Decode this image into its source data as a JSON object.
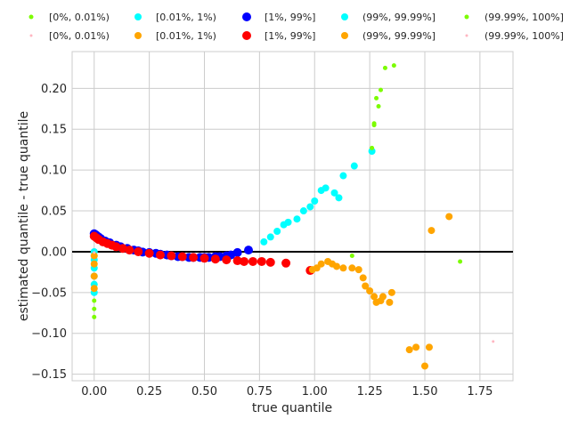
{
  "chart_data": {
    "type": "scatter",
    "xlabel": "true quantile",
    "ylabel": "estimated quantile - true quantile",
    "xlim": [
      -0.1,
      1.9
    ],
    "ylim": [
      -0.158,
      0.245
    ],
    "xticks": [
      0.0,
      0.25,
      0.5,
      0.75,
      1.0,
      1.25,
      1.5,
      1.75
    ],
    "xtick_labels": [
      "0.00",
      "0.25",
      "0.50",
      "0.75",
      "1.00",
      "1.25",
      "1.50",
      "1.75"
    ],
    "yticks": [
      -0.15,
      -0.1,
      -0.05,
      0.0,
      0.05,
      0.1,
      0.15,
      0.2
    ],
    "ytick_labels": [
      "−0.15",
      "−0.10",
      "−0.05",
      "0.00",
      "0.05",
      "0.10",
      "0.15",
      "0.20"
    ],
    "grid": true,
    "zero_line": true,
    "legend_placement": "top, above plot, 2 rows x 5 columns",
    "legend": [
      {
        "label": "[0%, 0.01%)",
        "color": "#7cfc00",
        "size": "small"
      },
      {
        "label": "[0.01%, 1%)",
        "color": "#00ffff",
        "size": "medium"
      },
      {
        "label": "[1%, 99%]",
        "color": "#0000ff",
        "size": "large"
      },
      {
        "label": "(99%, 99.99%]",
        "color": "#00ffff",
        "size": "medium"
      },
      {
        "label": "(99.99%, 100%]",
        "color": "#7cfc00",
        "size": "small"
      },
      {
        "label": "[0%, 0.01%)",
        "color": "#ffb6c1",
        "size": "tiny"
      },
      {
        "label": "[0.01%, 1%)",
        "color": "#ffa500",
        "size": "medium"
      },
      {
        "label": "[1%, 99%]",
        "color": "#ff0000",
        "size": "large"
      },
      {
        "label": "(99%, 99.99%]",
        "color": "#ffa500",
        "size": "medium"
      },
      {
        "label": "(99.99%, 100%]",
        "color": "#ffb6c1",
        "size": "tiny"
      }
    ],
    "series": [
      {
        "color": "#0000ff",
        "size": "large",
        "points": [
          [
            0.0,
            0.022
          ],
          [
            0.005,
            0.021
          ],
          [
            0.01,
            0.02
          ],
          [
            0.02,
            0.018
          ],
          [
            0.03,
            0.016
          ],
          [
            0.05,
            0.013
          ],
          [
            0.07,
            0.011
          ],
          [
            0.1,
            0.008
          ],
          [
            0.12,
            0.006
          ],
          [
            0.15,
            0.004
          ],
          [
            0.18,
            0.002
          ],
          [
            0.2,
            0.001
          ],
          [
            0.22,
            -0.0005
          ],
          [
            0.25,
            -0.001
          ],
          [
            0.28,
            -0.002
          ],
          [
            0.3,
            -0.003
          ],
          [
            0.33,
            -0.004
          ],
          [
            0.35,
            -0.005
          ],
          [
            0.38,
            -0.006
          ],
          [
            0.4,
            -0.006
          ],
          [
            0.43,
            -0.007
          ],
          [
            0.45,
            -0.007
          ],
          [
            0.48,
            -0.007
          ],
          [
            0.5,
            -0.007
          ],
          [
            0.52,
            -0.007
          ],
          [
            0.55,
            -0.006
          ],
          [
            0.57,
            -0.006
          ],
          [
            0.6,
            -0.005
          ],
          [
            0.62,
            -0.004
          ],
          [
            0.65,
            -0.001
          ],
          [
            0.7,
            0.002
          ]
        ]
      },
      {
        "color": "#ff0000",
        "size": "large",
        "points": [
          [
            0.0,
            0.019
          ],
          [
            0.01,
            0.017
          ],
          [
            0.02,
            0.015
          ],
          [
            0.04,
            0.012
          ],
          [
            0.06,
            0.01
          ],
          [
            0.08,
            0.008
          ],
          [
            0.1,
            0.006
          ],
          [
            0.13,
            0.004
          ],
          [
            0.16,
            0.002
          ],
          [
            0.2,
            0.0
          ],
          [
            0.25,
            -0.002
          ],
          [
            0.3,
            -0.004
          ],
          [
            0.35,
            -0.005
          ],
          [
            0.4,
            -0.006
          ],
          [
            0.45,
            -0.007
          ],
          [
            0.5,
            -0.008
          ],
          [
            0.55,
            -0.009
          ],
          [
            0.6,
            -0.01
          ],
          [
            0.65,
            -0.011
          ],
          [
            0.68,
            -0.012
          ],
          [
            0.72,
            -0.012
          ],
          [
            0.76,
            -0.012
          ],
          [
            0.8,
            -0.013
          ],
          [
            0.87,
            -0.014
          ],
          [
            0.98,
            -0.023
          ]
        ]
      },
      {
        "color": "#00ffff",
        "size": "medium",
        "points": [
          [
            0.0,
            0.0
          ],
          [
            0.0,
            -0.005
          ],
          [
            0.0,
            -0.01
          ],
          [
            0.0,
            -0.02
          ],
          [
            0.0,
            -0.03
          ],
          [
            0.0,
            -0.04
          ],
          [
            0.0,
            -0.05
          ],
          [
            0.77,
            0.012
          ],
          [
            0.8,
            0.018
          ],
          [
            0.83,
            0.025
          ],
          [
            0.86,
            0.033
          ],
          [
            0.88,
            0.036
          ],
          [
            0.92,
            0.04
          ],
          [
            0.95,
            0.05
          ],
          [
            0.98,
            0.055
          ],
          [
            1.0,
            0.062
          ],
          [
            1.03,
            0.075
          ],
          [
            1.05,
            0.078
          ],
          [
            1.09,
            0.072
          ],
          [
            1.11,
            0.066
          ],
          [
            1.13,
            0.093
          ],
          [
            1.18,
            0.105
          ],
          [
            1.26,
            0.123
          ]
        ]
      },
      {
        "color": "#ffa500",
        "size": "medium",
        "points": [
          [
            0.0,
            -0.005
          ],
          [
            0.0,
            -0.015
          ],
          [
            0.0,
            -0.03
          ],
          [
            0.0,
            -0.045
          ],
          [
            0.99,
            -0.022
          ],
          [
            1.01,
            -0.02
          ],
          [
            1.03,
            -0.015
          ],
          [
            1.06,
            -0.012
          ],
          [
            1.08,
            -0.015
          ],
          [
            1.1,
            -0.018
          ],
          [
            1.13,
            -0.02
          ],
          [
            1.17,
            -0.02
          ],
          [
            1.2,
            -0.022
          ],
          [
            1.22,
            -0.032
          ],
          [
            1.23,
            -0.042
          ],
          [
            1.25,
            -0.048
          ],
          [
            1.27,
            -0.055
          ],
          [
            1.28,
            -0.062
          ],
          [
            1.3,
            -0.06
          ],
          [
            1.31,
            -0.055
          ],
          [
            1.34,
            -0.062
          ],
          [
            1.35,
            -0.05
          ],
          [
            1.43,
            -0.12
          ],
          [
            1.46,
            -0.117
          ],
          [
            1.5,
            -0.14
          ],
          [
            1.52,
            -0.117
          ],
          [
            1.53,
            0.026
          ],
          [
            1.61,
            0.043
          ]
        ]
      },
      {
        "color": "#7cfc00",
        "size": "small",
        "points": [
          [
            0.0,
            -0.06
          ],
          [
            0.0,
            -0.07
          ],
          [
            0.0,
            -0.08
          ],
          [
            1.17,
            -0.005
          ],
          [
            1.26,
            0.127
          ],
          [
            1.27,
            0.155
          ],
          [
            1.27,
            0.157
          ],
          [
            1.28,
            0.188
          ],
          [
            1.29,
            0.178
          ],
          [
            1.3,
            0.198
          ],
          [
            1.32,
            0.225
          ],
          [
            1.36,
            0.228
          ],
          [
            1.66,
            -0.012
          ]
        ]
      },
      {
        "color": "#ffb6c1",
        "size": "tiny",
        "points": [
          [
            0.0,
            -0.001
          ],
          [
            1.81,
            -0.11
          ]
        ]
      }
    ]
  }
}
